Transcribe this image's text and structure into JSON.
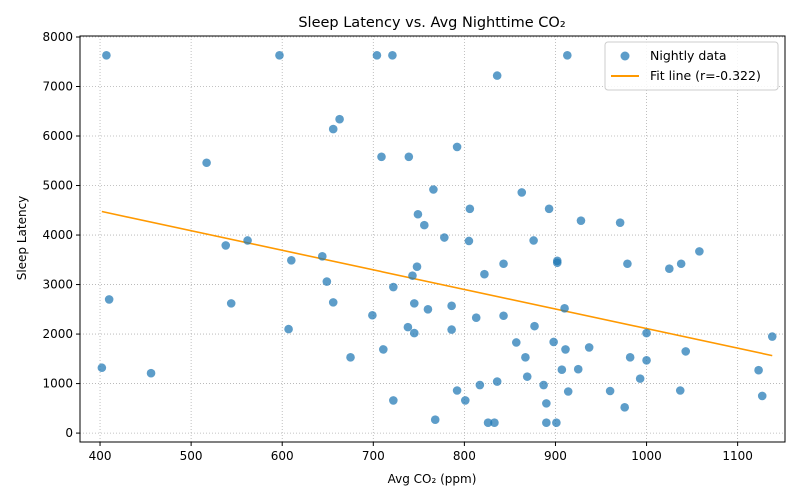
{
  "chart_data": {
    "type": "scatter",
    "title": "Sleep Latency vs. Avg Nighttime CO₂",
    "xlabel": "Avg CO₂ (ppm)",
    "ylabel": "Sleep Latency",
    "xlim": [
      378,
      1152
    ],
    "ylim": [
      -180,
      8020
    ],
    "xticks": [
      400,
      500,
      600,
      700,
      800,
      900,
      1000,
      1100
    ],
    "yticks": [
      0,
      1000,
      2000,
      3000,
      4000,
      5000,
      6000,
      7000,
      8000
    ],
    "grid": true,
    "legend_position": "top-right",
    "colors": {
      "points": "#1f77b4",
      "fit": "#ff9900"
    },
    "series": [
      {
        "name": "Nightly data",
        "kind": "scatter",
        "points": [
          [
            407,
            7630
          ],
          [
            597,
            7630
          ],
          [
            704,
            7630
          ],
          [
            721,
            7630
          ],
          [
            913,
            7630
          ],
          [
            836,
            7220
          ],
          [
            663,
            6340
          ],
          [
            656,
            6140
          ],
          [
            517,
            5460
          ],
          [
            792,
            5780
          ],
          [
            709,
            5580
          ],
          [
            739,
            5580
          ],
          [
            766,
            4920
          ],
          [
            863,
            4860
          ],
          [
            806,
            4530
          ],
          [
            893,
            4530
          ],
          [
            749,
            4420
          ],
          [
            928,
            4290
          ],
          [
            971,
            4250
          ],
          [
            756,
            4200
          ],
          [
            778,
            3950
          ],
          [
            805,
            3880
          ],
          [
            876,
            3890
          ],
          [
            538,
            3790
          ],
          [
            562,
            3890
          ],
          [
            1058,
            3670
          ],
          [
            644,
            3570
          ],
          [
            610,
            3490
          ],
          [
            902,
            3480
          ],
          [
            902,
            3440
          ],
          [
            979,
            3420
          ],
          [
            1038,
            3420
          ],
          [
            1025,
            3320
          ],
          [
            748,
            3360
          ],
          [
            843,
            3420
          ],
          [
            822,
            3210
          ],
          [
            743,
            3180
          ],
          [
            649,
            3060
          ],
          [
            722,
            2950
          ],
          [
            410,
            2700
          ],
          [
            544,
            2620
          ],
          [
            656,
            2640
          ],
          [
            745,
            2620
          ],
          [
            786,
            2570
          ],
          [
            760,
            2500
          ],
          [
            910,
            2520
          ],
          [
            699,
            2380
          ],
          [
            813,
            2330
          ],
          [
            843,
            2370
          ],
          [
            607,
            2100
          ],
          [
            738,
            2140
          ],
          [
            786,
            2090
          ],
          [
            877,
            2160
          ],
          [
            745,
            2020
          ],
          [
            1000,
            2020
          ],
          [
            1138,
            1950
          ],
          [
            857,
            1830
          ],
          [
            898,
            1840
          ],
          [
            937,
            1730
          ],
          [
            711,
            1690
          ],
          [
            911,
            1690
          ],
          [
            1043,
            1650
          ],
          [
            675,
            1530
          ],
          [
            867,
            1530
          ],
          [
            982,
            1530
          ],
          [
            1000,
            1470
          ],
          [
            402,
            1320
          ],
          [
            456,
            1210
          ],
          [
            907,
            1280
          ],
          [
            925,
            1290
          ],
          [
            1123,
            1270
          ],
          [
            869,
            1140
          ],
          [
            993,
            1100
          ],
          [
            836,
            1040
          ],
          [
            817,
            970
          ],
          [
            887,
            970
          ],
          [
            792,
            860
          ],
          [
            914,
            840
          ],
          [
            960,
            850
          ],
          [
            1037,
            860
          ],
          [
            1127,
            750
          ],
          [
            722,
            660
          ],
          [
            801,
            660
          ],
          [
            890,
            600
          ],
          [
            976,
            520
          ],
          [
            768,
            270
          ],
          [
            826,
            210
          ],
          [
            833,
            210
          ],
          [
            890,
            210
          ],
          [
            901,
            210
          ]
        ]
      },
      {
        "name": "Fit line (r=-0.322)",
        "kind": "line",
        "points": [
          [
            402,
            4475
          ],
          [
            1138,
            1565
          ]
        ]
      }
    ]
  }
}
